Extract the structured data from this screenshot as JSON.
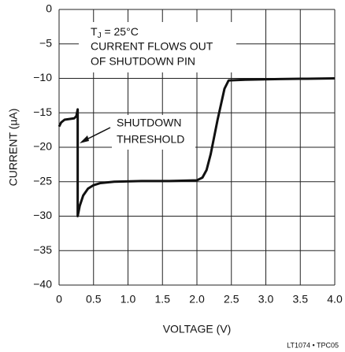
{
  "chart_data": {
    "type": "line",
    "xlabel": "VOLTAGE (V)",
    "ylabel": "CURRENT (µA)",
    "footer": "LT1074 • TPC05",
    "annotation_tj": {
      "base": "T",
      "sub": "J",
      "rest": " = 25°C"
    },
    "annotation_lines": [
      "CURRENT FLOWS OUT",
      "OF SHUTDOWN PIN"
    ],
    "annotation_threshold": [
      "SHUTDOWN",
      "THRESHOLD"
    ],
    "color": "#111111",
    "grid": true,
    "x": [
      0,
      0.03,
      0.08,
      0.15,
      0.22,
      0.25,
      0.27,
      0.27,
      0.3,
      0.35,
      0.42,
      0.5,
      0.6,
      0.8,
      1.2,
      1.6,
      2.0,
      2.08,
      2.14,
      2.2,
      2.3,
      2.4,
      2.46,
      2.7,
      3.2,
      3.6,
      4.0
    ],
    "values": [
      -17,
      -16.4,
      -16,
      -15.9,
      -15.8,
      -15.5,
      -14.5,
      -30,
      -28.5,
      -27,
      -26,
      -25.5,
      -25.2,
      -25,
      -24.9,
      -24.9,
      -24.8,
      -24.4,
      -23.3,
      -21,
      -16,
      -11.5,
      -10.3,
      -10.2,
      -10.1,
      -10.05,
      -10
    ],
    "xlim": [
      0,
      4
    ],
    "ylim": [
      -40,
      0
    ],
    "xticks": [
      0,
      0.5,
      {
        "value": 1,
        "label": "1.0"
      },
      1.5,
      {
        "value": 2,
        "label": "2.0"
      },
      2.5,
      {
        "value": 3,
        "label": "3.0"
      },
      3.5,
      {
        "value": 4,
        "label": "4.0"
      }
    ],
    "yticks": [
      0,
      {
        "value": -5,
        "label": "−5"
      },
      {
        "value": -10,
        "label": "−10"
      },
      {
        "value": -15,
        "label": "−15"
      },
      {
        "value": -20,
        "label": "−20"
      },
      {
        "value": -25,
        "label": "−25"
      },
      {
        "value": -30,
        "label": "−30"
      },
      {
        "value": -35,
        "label": "−35"
      },
      {
        "value": -40,
        "label": "−40"
      }
    ]
  }
}
